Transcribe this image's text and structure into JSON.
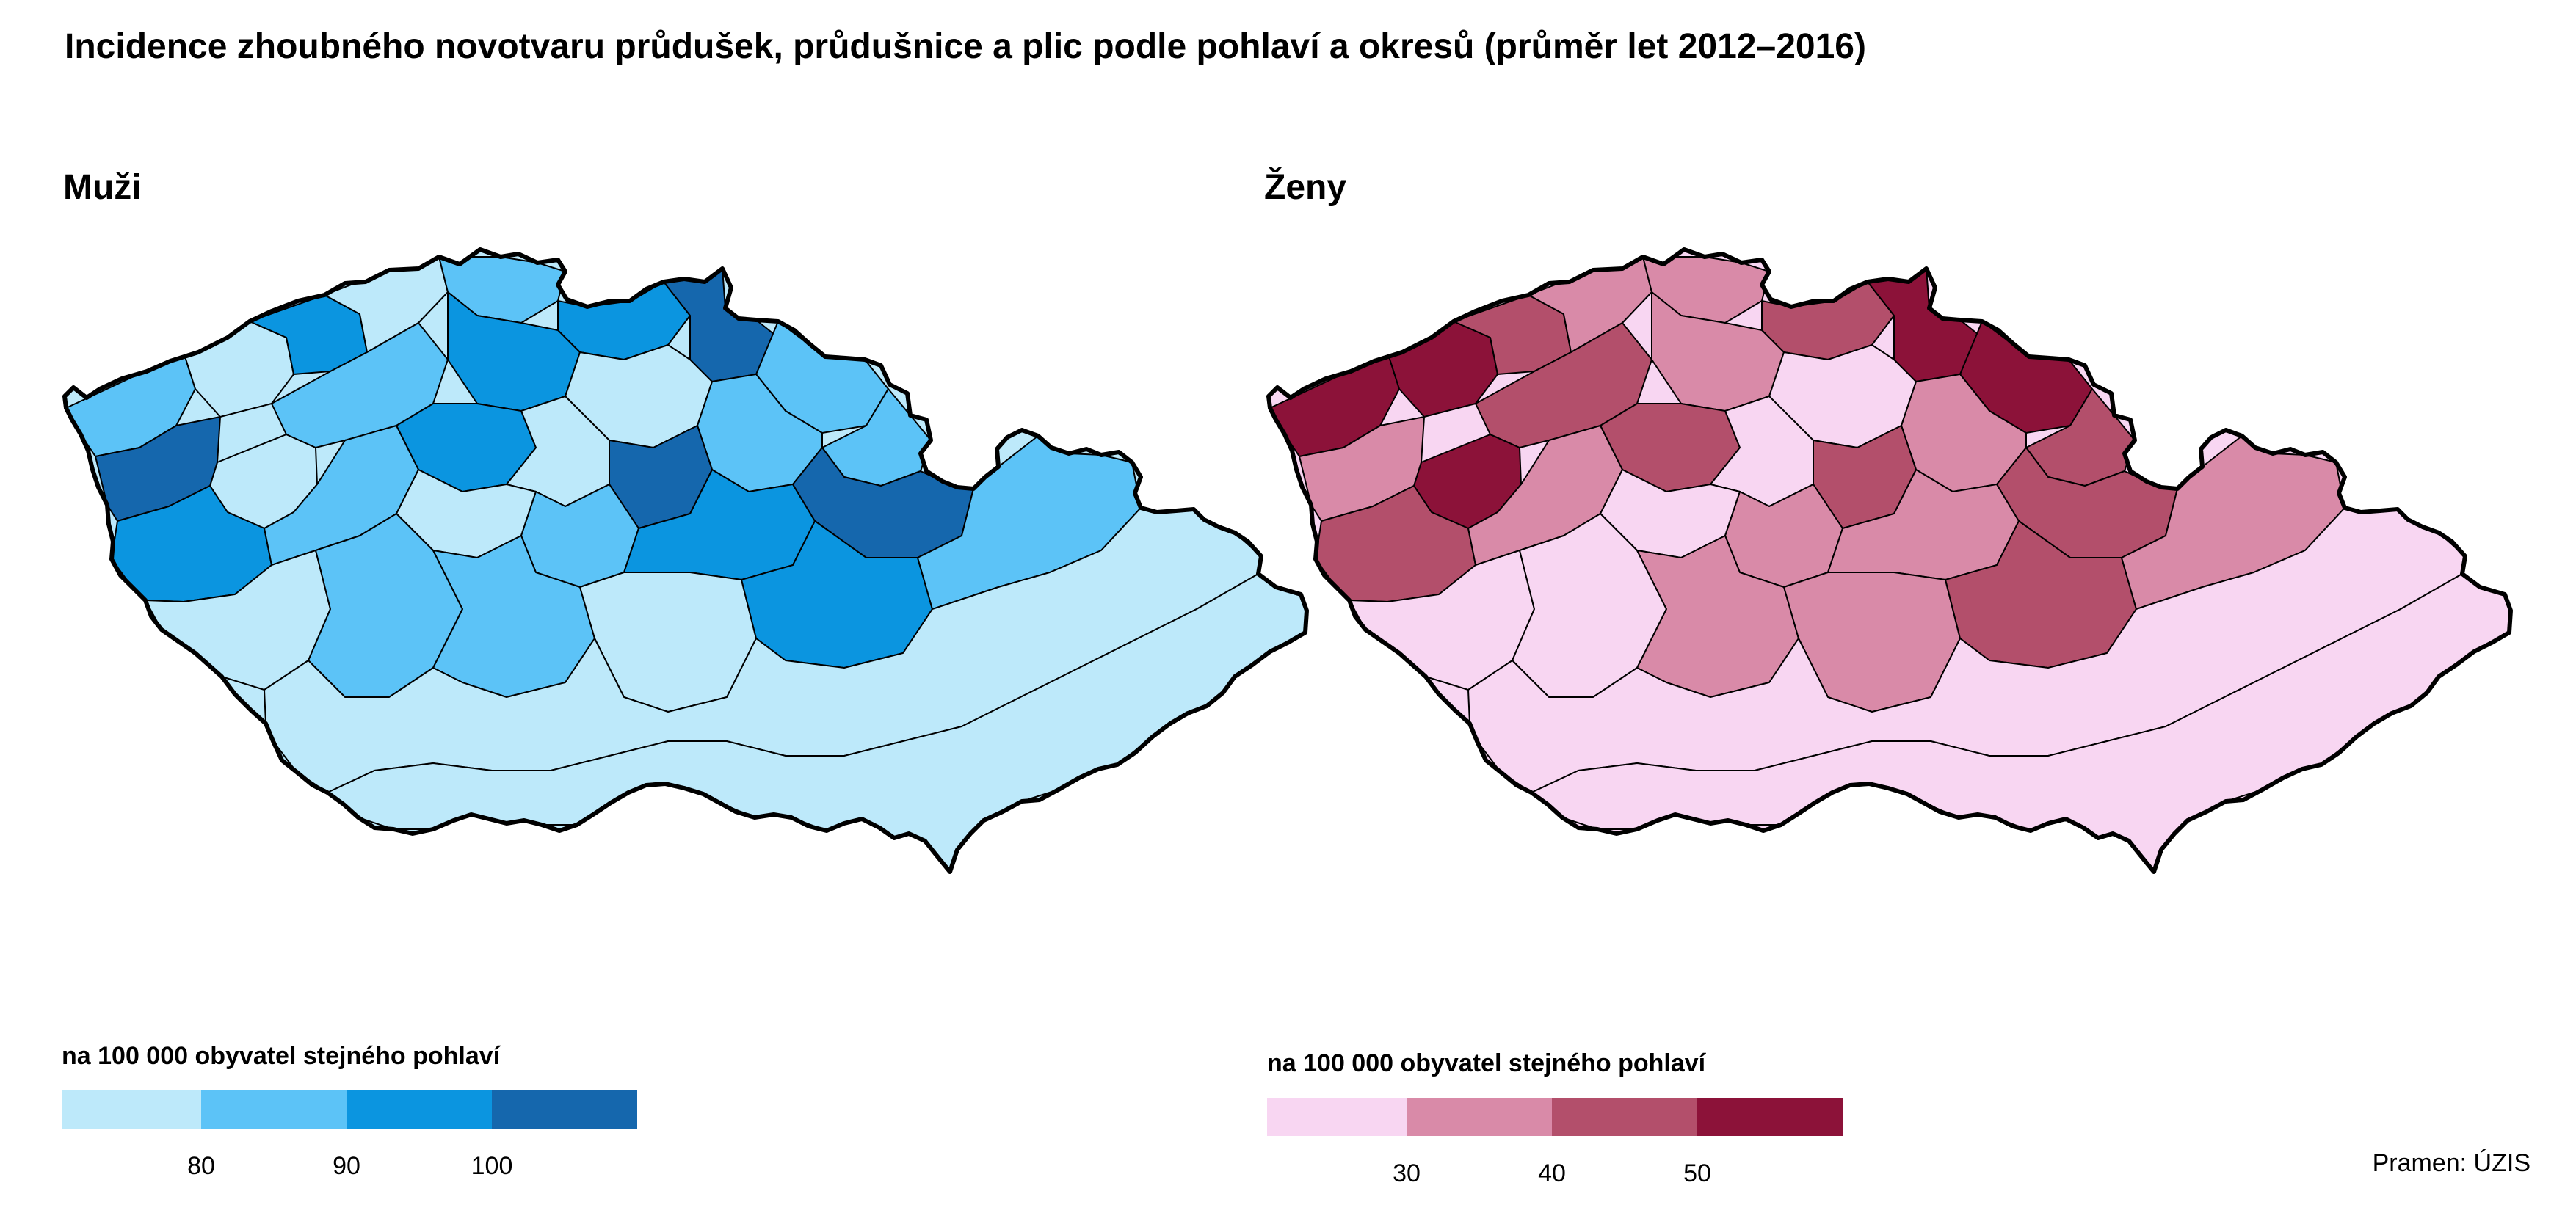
{
  "title": "Incidence zhoubného novotvaru průdušek, průdušnice a plic podle pohlaví a okresů (průměr let 2012–2016)",
  "source": "Pramen: ÚZIS",
  "panels": [
    {
      "id": "men",
      "title": "Muži",
      "legend_title": "na 100 000 obyvatel stejného pohlaví",
      "colors": [
        "#bde9fa",
        "#5cc3f7",
        "#0b95e0",
        "#1567ad"
      ],
      "ticks": [
        "80",
        "90",
        "100"
      ],
      "regions": [
        0,
        1,
        0,
        2,
        0,
        1,
        2,
        3,
        1,
        1,
        3,
        1,
        2,
        0,
        1,
        2,
        0,
        3,
        2,
        1,
        0,
        1,
        2,
        3,
        0,
        1,
        1,
        0,
        2,
        1,
        0,
        0
      ]
    },
    {
      "id": "women",
      "title": "Ženy",
      "legend_title": "na 100 000 obyvatel stejného pohlaví",
      "colors": [
        "#f8d6f2",
        "#d98aa8",
        "#b34f6b",
        "#8c1239"
      ],
      "ticks": [
        "30",
        "40",
        "50"
      ],
      "regions": [
        3,
        3,
        3,
        2,
        1,
        1,
        2,
        3,
        3,
        2,
        1,
        2,
        1,
        0,
        1,
        2,
        0,
        2,
        2,
        1,
        0,
        1,
        1,
        2,
        0,
        0,
        1,
        1,
        2,
        1,
        0,
        0
      ]
    }
  ]
}
